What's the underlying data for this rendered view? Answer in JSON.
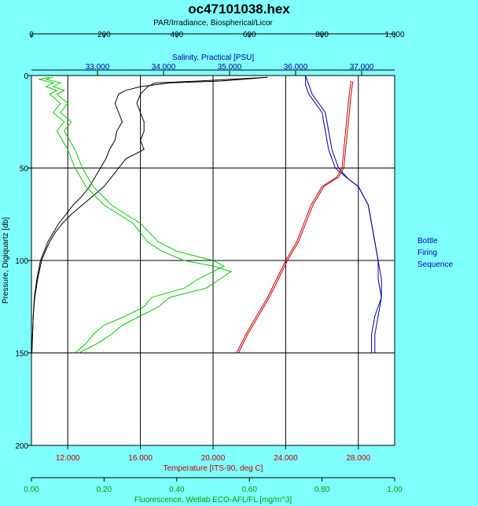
{
  "chart_data": {
    "type": "line",
    "title": "oc47101038.hex",
    "axes": {
      "par": {
        "label": "PAR/Irradiance, Biospherical/Licor",
        "range": [
          0,
          1000
        ],
        "ticks": [
          "0",
          "200",
          "400",
          "600",
          "800",
          "1,000"
        ],
        "color": "#000000"
      },
      "sal": {
        "label": "Salinity, Practical [PSU]",
        "range": [
          32.0,
          37.5
        ],
        "ticks": [
          "33.000",
          "34.000",
          "35.000",
          "36.000",
          "37.000"
        ],
        "color": "#0000a0"
      },
      "temp": {
        "label": "Temperature [ITS-90, deg C]",
        "range": [
          10,
          30
        ],
        "ticks": [
          "12.000",
          "16.000",
          "20.000",
          "24.000",
          "28.000"
        ],
        "color": "#c00000"
      },
      "fl": {
        "label": "Fluorescence, Wetlab ECO-AFL/FL [mg/m^3]",
        "range": [
          0,
          1.0
        ],
        "ticks": [
          "0.00",
          "0.20",
          "0.40",
          "0.60",
          "0.80",
          "1.00"
        ],
        "color": "#00a000"
      },
      "pres": {
        "label": "Pressure, Digiquartz [db]",
        "range": [
          0,
          200
        ],
        "ticks": [
          "0",
          "50",
          "100",
          "150",
          "200"
        ],
        "color": "#000000"
      }
    },
    "legend": [
      "Bottle",
      "Firing",
      "Sequence"
    ],
    "grid": true,
    "series": [
      {
        "axis": "par",
        "color": "#000000",
        "y": [
          1,
          3,
          4,
          6,
          8,
          10,
          15,
          20,
          25,
          30,
          35,
          40,
          45,
          50,
          55,
          60,
          65,
          70,
          75,
          80,
          85,
          90,
          95,
          100,
          110,
          120,
          130,
          140,
          150
        ],
        "x": [
          650,
          520,
          380,
          300,
          260,
          240,
          230,
          240,
          250,
          235,
          230,
          215,
          205,
          190,
          175,
          160,
          140,
          115,
          95,
          75,
          60,
          45,
          35,
          25,
          15,
          8,
          5,
          3,
          1
        ]
      },
      {
        "axis": "par",
        "color": "#000000",
        "y": [
          1,
          3,
          4,
          6,
          8,
          10,
          15,
          20,
          25,
          30,
          35,
          40,
          45,
          50,
          55,
          60,
          65,
          70,
          75,
          80,
          85,
          90,
          95,
          100,
          110,
          120,
          130,
          140,
          150
        ],
        "x": [
          650,
          460,
          340,
          320,
          310,
          300,
          290,
          300,
          310,
          310,
          300,
          310,
          260,
          240,
          220,
          200,
          170,
          140,
          110,
          85,
          65,
          50,
          38,
          28,
          17,
          9,
          5,
          3,
          1
        ]
      },
      {
        "axis": "sal",
        "color": "#0000a0",
        "y": [
          0,
          5,
          10,
          20,
          30,
          40,
          50,
          56,
          60,
          70,
          80,
          90,
          100,
          110,
          120,
          130,
          140,
          150
        ],
        "x": [
          36.15,
          36.15,
          36.2,
          36.4,
          36.45,
          36.5,
          36.6,
          36.8,
          36.95,
          37.1,
          37.15,
          37.2,
          37.25,
          37.25,
          37.3,
          37.2,
          37.15,
          37.15
        ]
      },
      {
        "axis": "sal",
        "color": "#0000a0",
        "y": [
          0,
          5,
          10,
          20,
          30,
          40,
          50,
          56,
          60,
          70,
          80,
          90,
          100,
          110,
          120,
          130,
          140,
          150
        ],
        "x": [
          36.15,
          36.2,
          36.25,
          36.45,
          36.5,
          36.55,
          36.65,
          36.8,
          36.95,
          37.1,
          37.15,
          37.2,
          37.25,
          37.3,
          37.3,
          37.25,
          37.2,
          37.2
        ]
      },
      {
        "axis": "temp",
        "color": "#c00000",
        "y": [
          3,
          10,
          20,
          30,
          40,
          50,
          55,
          60,
          70,
          80,
          90,
          100,
          110,
          120,
          130,
          140,
          150
        ],
        "x": [
          27.6,
          27.5,
          27.4,
          27.3,
          27.2,
          27.1,
          26.8,
          26.0,
          25.4,
          25.0,
          24.6,
          24.0,
          23.5,
          23.0,
          22.4,
          21.8,
          21.3
        ]
      },
      {
        "axis": "temp",
        "color": "#c00000",
        "y": [
          3,
          10,
          20,
          30,
          40,
          50,
          55,
          60,
          70,
          80,
          90,
          100,
          110,
          120,
          130,
          140,
          150
        ],
        "x": [
          27.7,
          27.6,
          27.5,
          27.4,
          27.3,
          27.2,
          26.9,
          26.1,
          25.5,
          25.1,
          24.7,
          24.1,
          23.6,
          23.1,
          22.5,
          21.9,
          21.4
        ]
      },
      {
        "axis": "fl",
        "color": "#00cc00",
        "y": [
          1,
          2,
          4,
          6,
          8,
          10,
          15,
          20,
          25,
          30,
          40,
          50,
          60,
          70,
          80,
          90,
          95,
          100,
          103,
          106,
          110,
          115,
          120,
          125,
          130,
          135,
          140,
          145,
          150
        ],
        "x": [
          0.05,
          0.02,
          0.06,
          0.04,
          0.07,
          0.05,
          0.08,
          0.06,
          0.09,
          0.07,
          0.1,
          0.12,
          0.15,
          0.2,
          0.28,
          0.32,
          0.36,
          0.42,
          0.5,
          0.55,
          0.52,
          0.48,
          0.38,
          0.35,
          0.3,
          0.25,
          0.22,
          0.18,
          0.13
        ]
      },
      {
        "axis": "fl",
        "color": "#00cc00",
        "y": [
          1,
          2,
          4,
          6,
          8,
          10,
          15,
          20,
          25,
          30,
          40,
          50,
          60,
          70,
          80,
          90,
          95,
          100,
          103,
          106,
          110,
          115,
          120,
          125,
          130,
          135,
          140,
          145,
          150
        ],
        "x": [
          0.06,
          0.04,
          0.08,
          0.06,
          0.09,
          0.07,
          0.1,
          0.08,
          0.11,
          0.09,
          0.12,
          0.14,
          0.17,
          0.22,
          0.3,
          0.35,
          0.4,
          0.5,
          0.53,
          0.5,
          0.46,
          0.42,
          0.33,
          0.31,
          0.26,
          0.2,
          0.17,
          0.15,
          0.12
        ]
      }
    ]
  }
}
